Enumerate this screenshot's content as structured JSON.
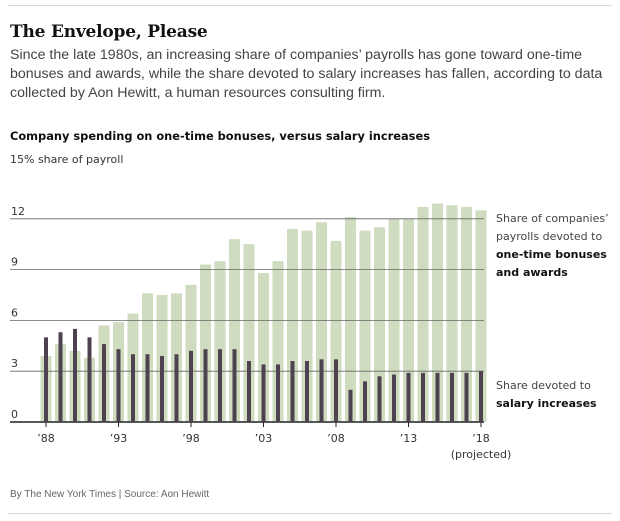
{
  "headline": "The Envelope, Please",
  "deck": "Since the late 1980s, an increasing share of companies’ payrolls has gone toward one-time bonuses and awards, while the share devoted to salary increases has fallen, according to data collected by Aon Hewitt, a human resources consulting firm.",
  "footer": "By The New York Times | Source: Aon Hewitt",
  "colors": {
    "bonuses": "#cfdcc0",
    "salary": "#4e4150",
    "grid": "#666666",
    "baseline": "#222222"
  },
  "chart_data": {
    "type": "bar",
    "title": "Company spending on one-time bonuses, versus salary increases",
    "unit_label": "15% share of payroll",
    "ylim": [
      0,
      15
    ],
    "y_ticks": [
      0,
      3,
      6,
      9,
      12
    ],
    "x": [
      1988,
      1989,
      1990,
      1991,
      1992,
      1993,
      1994,
      1995,
      1996,
      1997,
      1998,
      1999,
      2000,
      2001,
      2002,
      2003,
      2004,
      2005,
      2006,
      2007,
      2008,
      2009,
      2010,
      2011,
      2012,
      2013,
      2014,
      2015,
      2016,
      2017,
      2018
    ],
    "x_tick_labels": [
      {
        "x": 1988,
        "label": "’88"
      },
      {
        "x": 1993,
        "label": "’93"
      },
      {
        "x": 1998,
        "label": "’98"
      },
      {
        "x": 2003,
        "label": "’03"
      },
      {
        "x": 2008,
        "label": "’08"
      },
      {
        "x": 2013,
        "label": "’13"
      },
      {
        "x": 2018,
        "label": "’18"
      }
    ],
    "x_tick_note": "(projected)",
    "series": [
      {
        "key": "bonuses",
        "values": [
          3.9,
          4.6,
          4.2,
          3.8,
          5.7,
          5.9,
          6.4,
          7.6,
          7.5,
          7.6,
          8.1,
          9.3,
          9.5,
          10.8,
          10.5,
          8.8,
          9.5,
          11.4,
          11.3,
          11.8,
          10.7,
          12.1,
          11.3,
          11.5,
          12.0,
          12.0,
          12.7,
          12.9,
          12.8,
          12.7,
          12.5
        ]
      },
      {
        "key": "salary",
        "values": [
          5.0,
          5.3,
          5.5,
          5.0,
          4.6,
          4.3,
          4.0,
          4.0,
          3.9,
          4.0,
          4.2,
          4.3,
          4.3,
          4.3,
          3.6,
          3.4,
          3.4,
          3.6,
          3.6,
          3.7,
          3.7,
          1.9,
          2.4,
          2.7,
          2.8,
          2.9,
          2.9,
          2.9,
          2.9,
          2.9,
          3.0
        ]
      }
    ],
    "annotations": {
      "bonuses": {
        "line1": "Share of companies’",
        "line2": "payrolls devoted to",
        "bold1": "one-time bonuses",
        "bold2": "and awards"
      },
      "salary": {
        "line1": "Share devoted to",
        "bold1": "salary increases"
      }
    }
  }
}
